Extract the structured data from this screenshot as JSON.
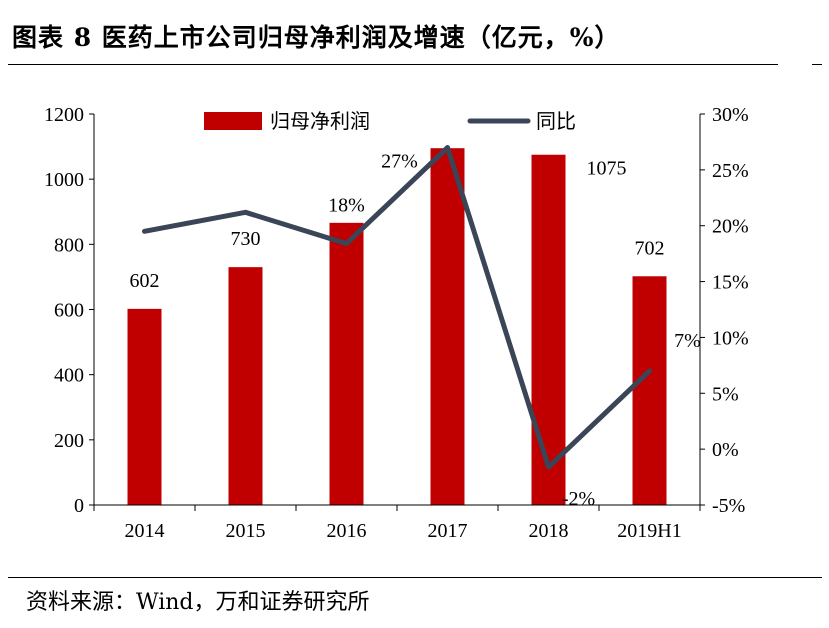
{
  "figure": {
    "title": "图表 8 医药上市公司归母净利润及增速（亿元，%）",
    "source": "资料来源：Wind，万和证券研究所"
  },
  "chart_data": {
    "type": "bar",
    "categories": [
      "2014",
      "2015",
      "2016",
      "2017",
      "2018",
      "2019H1"
    ],
    "series": [
      {
        "name": "归母净利润",
        "type": "bar",
        "axis": "left",
        "color": "#c00000",
        "values": [
          602,
          730,
          866,
          1095,
          1075,
          702
        ],
        "data_labels": [
          "602",
          "730",
          "",
          "",
          "1075",
          "702"
        ]
      },
      {
        "name": "同比",
        "type": "line",
        "axis": "right",
        "color": "#3a4557",
        "values": [
          19.5,
          21.2,
          18.4,
          27.0,
          -1.6,
          7.0
        ],
        "data_labels": [
          "",
          "",
          "18%",
          "27%",
          "-2%",
          "7%"
        ]
      }
    ],
    "y_left": {
      "min": 0,
      "max": 1200,
      "step": 200,
      "tick_labels": [
        "0",
        "200",
        "400",
        "600",
        "800",
        "1000",
        "1200"
      ]
    },
    "y_right": {
      "min": -5,
      "max": 30,
      "step": 5,
      "tick_labels": [
        "-5%",
        "0%",
        "5%",
        "10%",
        "15%",
        "20%",
        "25%",
        "30%"
      ]
    },
    "grid": false,
    "legend_position": "top"
  }
}
